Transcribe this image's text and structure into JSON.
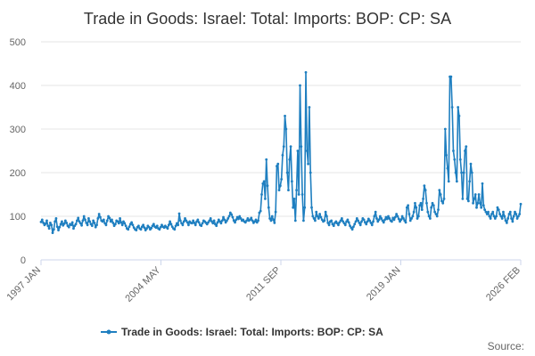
{
  "chart_data": {
    "type": "line",
    "title": "Trade in Goods: Israel: Total: Imports: BOP: CP: SA",
    "xlabel": "",
    "ylabel": "",
    "ylim": [
      0,
      500
    ],
    "yticks": [
      0,
      100,
      200,
      300,
      400,
      500
    ],
    "x_range": [
      "1997 JAN",
      "2026 FEB"
    ],
    "xticks": [
      "1997 JAN",
      "2004 MAY",
      "2011 SEP",
      "2019 JAN",
      "2026 FEB"
    ],
    "legend": "Trade in Goods: Israel: Total: Imports: BOP: CP: SA",
    "legend_position": "bottom-center",
    "source_label": "Source:",
    "series_color": "#1f7fc0",
    "series": [
      {
        "name": "Trade in Goods: Israel: Total: Imports: BOP: CP: SA",
        "start": "1997 JAN",
        "frequency": "monthly",
        "values": [
          87,
          92,
          85,
          80,
          83,
          90,
          78,
          72,
          85,
          80,
          62,
          70,
          88,
          95,
          76,
          68,
          75,
          82,
          88,
          79,
          83,
          90,
          85,
          78,
          75,
          82,
          80,
          86,
          72,
          78,
          82,
          90,
          96,
          88,
          84,
          79,
          90,
          100,
          92,
          85,
          80,
          95,
          88,
          82,
          78,
          90,
          85,
          75,
          80,
          95,
          105,
          98,
          90,
          88,
          92,
          84,
          80,
          90,
          100,
          96,
          88,
          92,
          85,
          78,
          82,
          90,
          88,
          84,
          95,
          86,
          80,
          88,
          84,
          78,
          72,
          70,
          76,
          82,
          86,
          80,
          74,
          70,
          68,
          75,
          78,
          72,
          70,
          76,
          80,
          74,
          68,
          72,
          78,
          75,
          70,
          73,
          78,
          82,
          76,
          74,
          78,
          72,
          70,
          75,
          80,
          76,
          74,
          78,
          75,
          72,
          80,
          88,
          82,
          76,
          72,
          70,
          78,
          84,
          80,
          106,
          90,
          84,
          80,
          88,
          95,
          90,
          86,
          80,
          88,
          85,
          84,
          90,
          85,
          80,
          88,
          92,
          86,
          80,
          78,
          84,
          90,
          88,
          85,
          82,
          86,
          90,
          95,
          88,
          84,
          90,
          82,
          78,
          86,
          92,
          88,
          84,
          90,
          98,
          92,
          86,
          90,
          95,
          100,
          108,
          104,
          98,
          90,
          86,
          92,
          98,
          94,
          100,
          95,
          90,
          92,
          88,
          86,
          90,
          95,
          90,
          92,
          96,
          90,
          85,
          88,
          92,
          86,
          90,
          108,
          112,
          150,
          175,
          180,
          140,
          230,
          170,
          120,
          95,
          90,
          100,
          92,
          85,
          110,
          215,
          220,
          160,
          170,
          185,
          240,
          260,
          330,
          300,
          200,
          160,
          230,
          260,
          180,
          120,
          140,
          90,
          160,
          250,
          150,
          400,
          260,
          150,
          90,
          120,
          430,
          250,
          220,
          350,
          200,
          120,
          100,
          95,
          90,
          110,
          100,
          95,
          105,
          98,
          92,
          88,
          90,
          110,
          100,
          85,
          80,
          88,
          90,
          82,
          78,
          85,
          88,
          84,
          80,
          86,
          90,
          95,
          88,
          84,
          80,
          88,
          92,
          86,
          78,
          74,
          70,
          76,
          82,
          88,
          95,
          90,
          85,
          80,
          88,
          95,
          92,
          86,
          82,
          88,
          94,
          90,
          85,
          80,
          88,
          100,
          110,
          95,
          88,
          92,
          100,
          95,
          90,
          86,
          92,
          98,
          94,
          100,
          95,
          90,
          88,
          96,
          92,
          98,
          105,
          100,
          94,
          88,
          92,
          100,
          95,
          90,
          86,
          120,
          125,
          105,
          90,
          95,
          100,
          110,
          130,
          120,
          95,
          100,
          125,
          130,
          115,
          140,
          170,
          160,
          130,
          110,
          100,
          95,
          120,
          130,
          125,
          110,
          105,
          100,
          115,
          160,
          150,
          135,
          130,
          140,
          300,
          240,
          210,
          180,
          420,
          420,
          350,
          250,
          230,
          200,
          180,
          350,
          330,
          230,
          200,
          140,
          200,
          250,
          260,
          140,
          135,
          180,
          220,
          200,
          130,
          140,
          150,
          120,
          130,
          150,
          130,
          120,
          175,
          125,
          115,
          110,
          105,
          110,
          100,
          95,
          105,
          110,
          100,
          95,
          100,
          120,
          115,
          105,
          100,
          95,
          110,
          100,
          90,
          85,
          95,
          105,
          110,
          95,
          88,
          100,
          110,
          105,
          95,
          100,
          105,
          128
        ]
      }
    ]
  }
}
